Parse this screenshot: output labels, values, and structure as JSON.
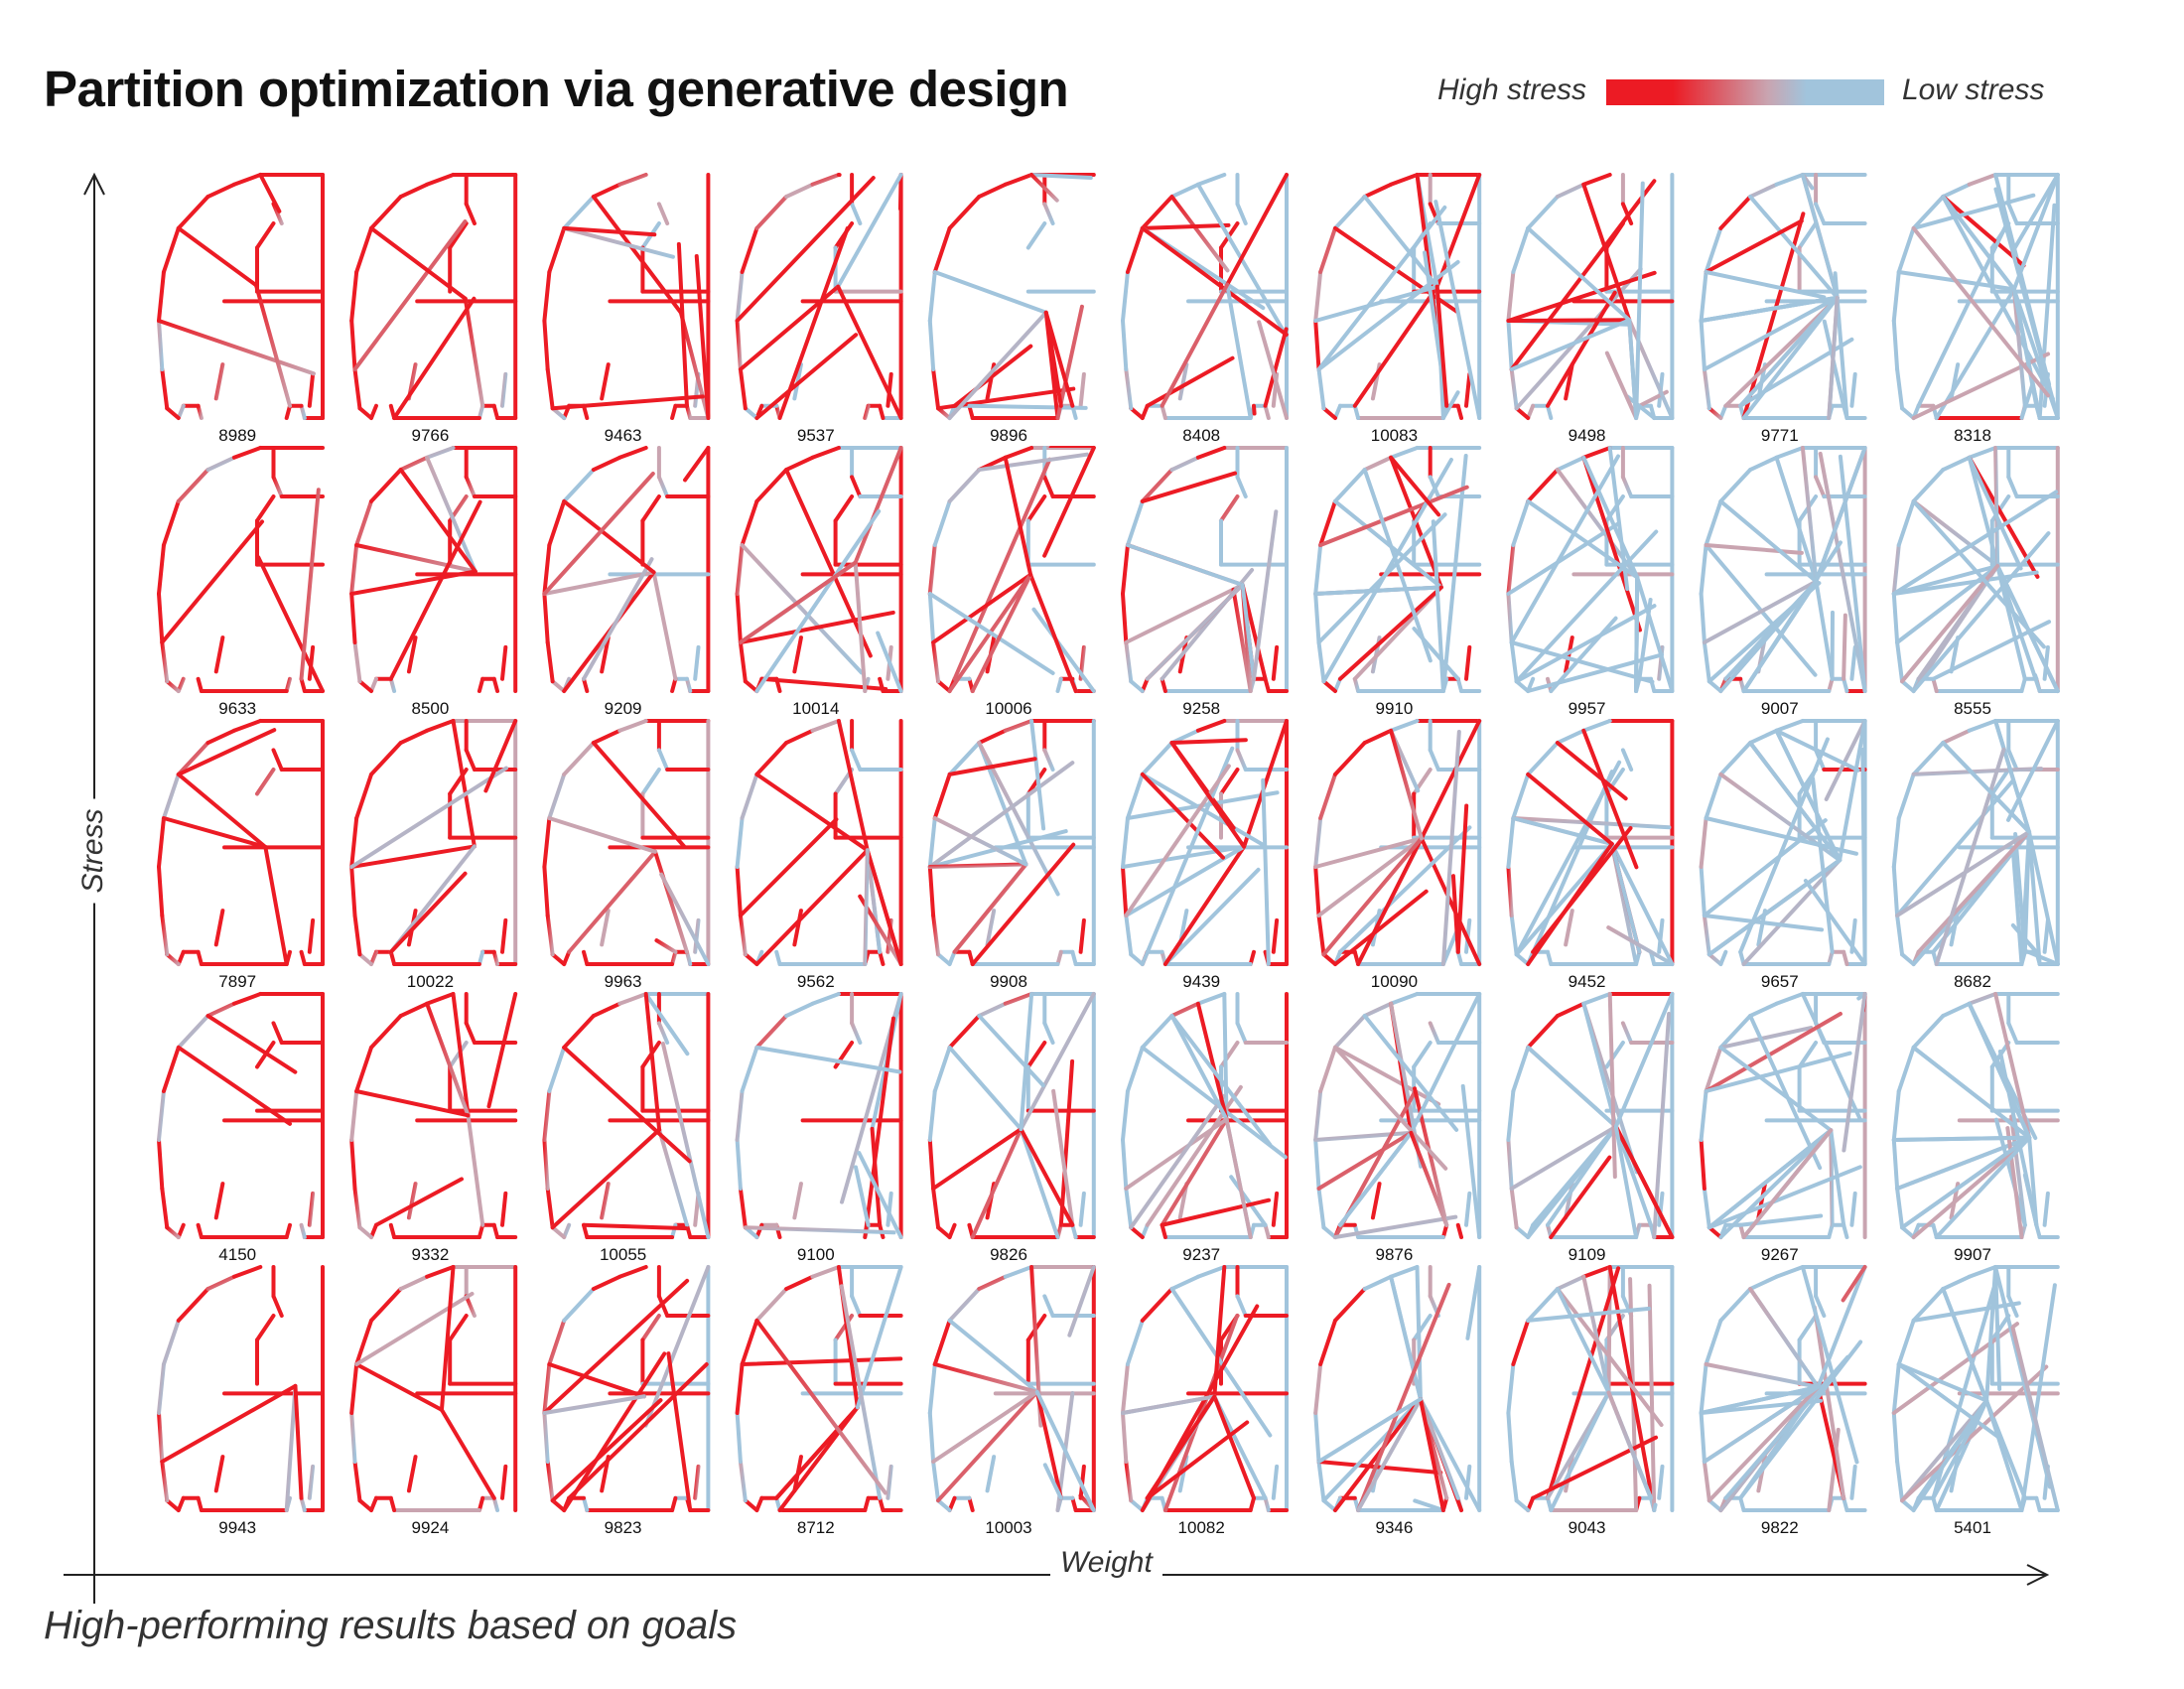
{
  "title": "Partition optimization via generative design",
  "legend": {
    "high_label": "High stress",
    "low_label": "Low stress",
    "high_color": "#ec1b24",
    "mid_color": "#c9a4b0",
    "low_color": "#a1c4dc"
  },
  "axes": {
    "x_label": "Weight",
    "y_label": "Stress"
  },
  "subtitle": "High-performing results based on goals",
  "grid": {
    "rows": [
      {
        "labels": [
          "8989",
          "9766",
          "9463",
          "9537",
          "9896",
          "8408",
          "10083",
          "9498",
          "9771",
          "8318"
        ]
      },
      {
        "labels": [
          "9633",
          "8500",
          "9209",
          "10014",
          "10006",
          "9258",
          "9910",
          "9957",
          "9007",
          "8555"
        ]
      },
      {
        "labels": [
          "7897",
          "10022",
          "9963",
          "9562",
          "9908",
          "9439",
          "10090",
          "9452",
          "9657",
          "8682"
        ]
      },
      {
        "labels": [
          "4150",
          "9332",
          "10055",
          "9100",
          "9826",
          "9237",
          "9876",
          "9109",
          "9267",
          "9907"
        ]
      },
      {
        "labels": [
          "9943",
          "9924",
          "9823",
          "8712",
          "10003",
          "10082",
          "9346",
          "9043",
          "9822",
          "5401"
        ]
      }
    ]
  }
}
